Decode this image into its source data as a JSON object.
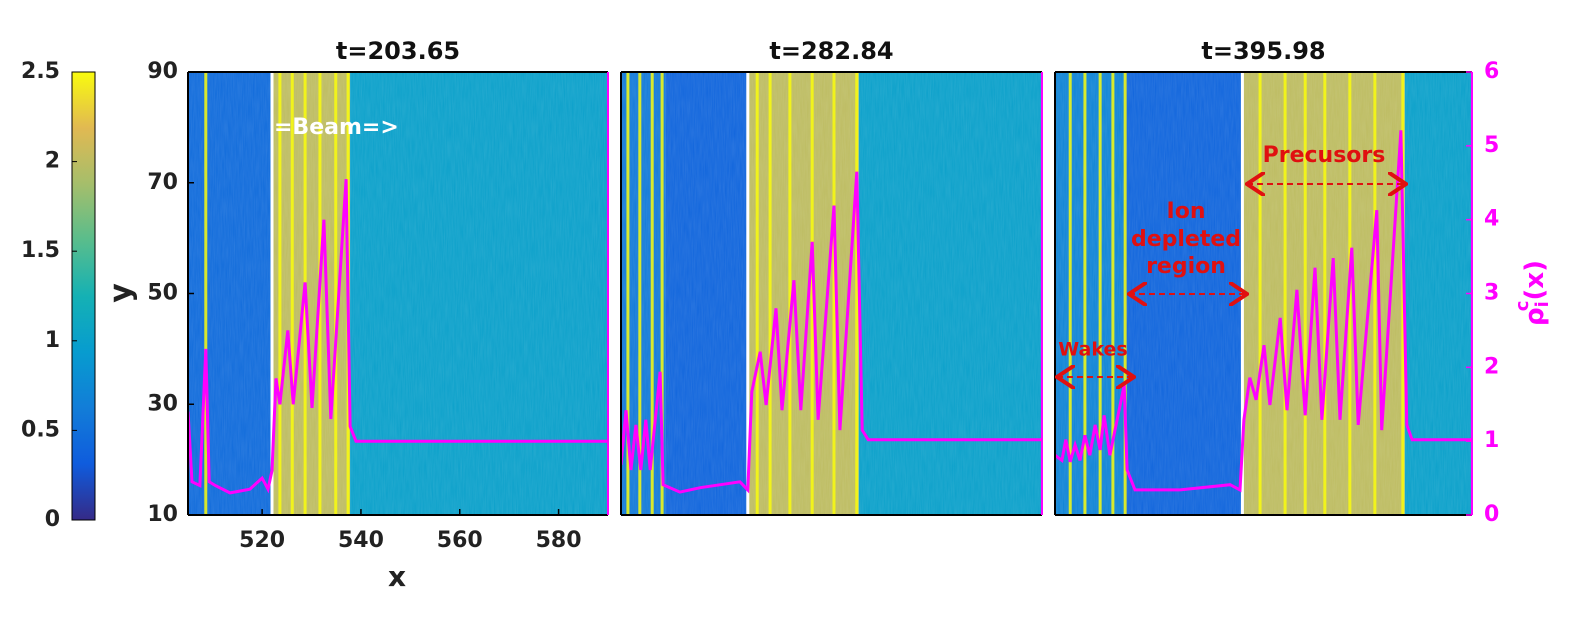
{
  "chart_data": [
    {
      "type": "heatmap-line",
      "title": "t=203.65",
      "xlabel": "x",
      "ylabel": "y",
      "xlim": [
        505,
        590
      ],
      "xticks": [
        520,
        540,
        560,
        580
      ],
      "ylim": [
        10,
        90
      ],
      "yticks": [
        10,
        30,
        50,
        70,
        90
      ],
      "y2lim": [
        0,
        6
      ],
      "clim": [
        0,
        2.5
      ],
      "cticks": [
        0,
        0.5,
        1,
        1.5,
        2,
        2.5
      ],
      "regions": [
        {
          "x0": 505,
          "x1": 522,
          "value": 0.45
        },
        {
          "x0": 522,
          "x1": 537.8,
          "value": 2.0
        },
        {
          "x0": 537.8,
          "x1": 590,
          "value": 1.0
        }
      ],
      "stripes": [
        508.6,
        523.6,
        526.1,
        528.7,
        531.7,
        534.9,
        537.4
      ],
      "x": [
        505,
        505.8,
        507.4,
        508.6,
        509.3,
        510.5,
        513.5,
        517.5,
        520,
        521.2,
        522,
        522.8,
        523.6,
        525.2,
        526.3,
        528.7,
        530.1,
        532.5,
        533.9,
        537,
        537.8,
        539,
        590
      ],
      "series": [
        {
          "color": "#ff00ff",
          "axis": "y2",
          "values": [
            1.4,
            0.45,
            0.4,
            2.25,
            0.45,
            0.4,
            0.3,
            0.35,
            0.5,
            0.35,
            0.6,
            1.85,
            1.5,
            2.5,
            1.5,
            3.15,
            1.45,
            4.0,
            1.3,
            4.55,
            1.2,
            1.0,
            1.0
          ]
        }
      ],
      "annotations": [
        "=Beam=>"
      ]
    },
    {
      "type": "heatmap-line",
      "title": "t=282.84",
      "xlim": [
        585,
        670
      ],
      "ylim": [
        10,
        90
      ],
      "y2lim": [
        0,
        6
      ],
      "regions": [
        {
          "x0": 585,
          "x1": 594,
          "value": 0.6
        },
        {
          "x0": 594,
          "x1": 610.6,
          "value": 0.4
        },
        {
          "x0": 610.6,
          "x1": 633,
          "value": 2.0
        },
        {
          "x0": 633,
          "x1": 670,
          "value": 1.0
        }
      ],
      "stripes": [
        586.4,
        588.8,
        591.3,
        593.3,
        612.5,
        615.1,
        619.1,
        623.6,
        628,
        632.6
      ],
      "x": [
        585,
        586,
        587,
        588,
        589,
        590,
        590.9,
        592.9,
        593.5,
        596.9,
        601,
        609,
        610.6,
        611.4,
        613.1,
        614.3,
        616.3,
        617.5,
        619.9,
        621.3,
        623.6,
        624.8,
        628,
        629.2,
        632.6,
        633.7,
        634.9,
        670
      ],
      "series": [
        {
          "color": "#ff00ff",
          "axis": "y2",
          "values": [
            0.68,
            1.42,
            0.61,
            1.22,
            0.61,
            1.29,
            0.61,
            1.94,
            0.41,
            0.31,
            0.37,
            0.45,
            0.34,
            1.67,
            2.21,
            1.49,
            2.8,
            1.42,
            3.18,
            1.42,
            3.7,
            1.29,
            4.19,
            1.15,
            4.65,
            1.15,
            1.02,
            1.02
          ]
        }
      ]
    },
    {
      "type": "heatmap-line",
      "title": "t=395.98",
      "xlim": [
        690,
        775
      ],
      "ylim": [
        10,
        90
      ],
      "y2lim": [
        0,
        6
      ],
      "y2ticks": [
        0,
        1,
        2,
        3,
        4,
        5,
        6
      ],
      "y2label": {
        "symbol": "ρ",
        "sub": "i",
        "sup": "c",
        "arg": "(x)"
      },
      "regions": [
        {
          "x0": 690,
          "x1": 704.1,
          "value": 0.7
        },
        {
          "x0": 704.1,
          "x1": 728.2,
          "value": 0.4
        },
        {
          "x0": 728.2,
          "x1": 761.3,
          "value": 2.0
        },
        {
          "x0": 761.3,
          "x1": 775,
          "value": 1.0
        }
      ],
      "stripes": [
        693.1,
        696.1,
        699.2,
        701.8,
        704.3,
        731.8,
        736.9,
        741,
        745,
        750.1,
        755.2,
        760.9
      ],
      "x": [
        690,
        691.4,
        692.2,
        693.1,
        694.1,
        695.1,
        696.1,
        697.1,
        698.2,
        699.2,
        700,
        701.2,
        704.1,
        704.7,
        706.3,
        715.5,
        725.7,
        727.7,
        728.5,
        729.7,
        731,
        732.6,
        733.8,
        735.9,
        737.3,
        739.3,
        741,
        743,
        744.4,
        746.7,
        748.1,
        750.5,
        751.8,
        755.6,
        756.6,
        760.5,
        761.7,
        762.8,
        775
      ],
      "series": [
        {
          "color": "#ff00ff",
          "axis": "y2",
          "values": [
            0.81,
            0.74,
            1.02,
            0.72,
            0.95,
            0.74,
            1.08,
            0.81,
            1.22,
            0.88,
            1.35,
            0.81,
            1.76,
            0.61,
            0.34,
            0.34,
            0.41,
            0.34,
            1.29,
            1.86,
            1.56,
            2.3,
            1.49,
            2.67,
            1.42,
            3.05,
            1.35,
            3.35,
            1.29,
            3.48,
            1.29,
            3.62,
            1.22,
            4.13,
            1.15,
            5.21,
            1.22,
            1.02,
            1.02
          ]
        }
      ],
      "annotations": [
        "Precusors",
        [
          "Ion",
          "depleted",
          "region"
        ],
        "Wakes"
      ]
    }
  ]
}
